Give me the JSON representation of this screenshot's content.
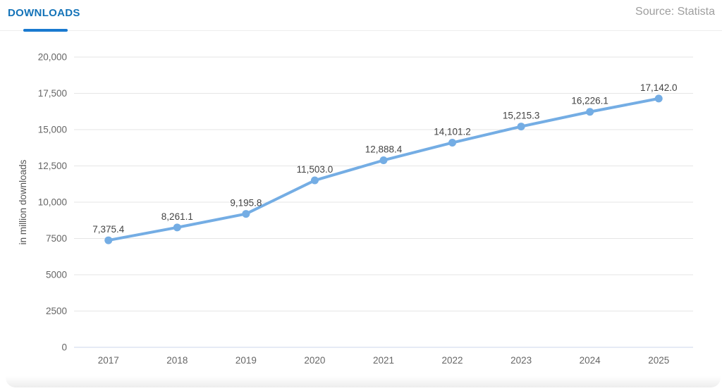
{
  "header": {
    "tab_label": "DOWNLOADS",
    "source": "Source: Statista"
  },
  "colors": {
    "title_blue": "#1473b8",
    "indicator_blue": "#1a7ad0",
    "line_blue": "#74ade4",
    "grid_gray": "#e6e6e6",
    "axis_line": "#ccd6eb",
    "tick_text": "#666666",
    "data_label_text": "#434343",
    "axis_title_text": "#555555",
    "source_text": "#9e9e9e"
  },
  "chart_data": {
    "type": "line",
    "title": "DOWNLOADS",
    "categories": [
      "2017",
      "2018",
      "2019",
      "2020",
      "2021",
      "2022",
      "2023",
      "2024",
      "2025"
    ],
    "values": [
      7375.4,
      8261.1,
      9195.8,
      11503.0,
      12888.4,
      14101.2,
      15215.3,
      16226.1,
      17142.0
    ],
    "point_labels": [
      "7,375.4",
      "8,261.1",
      "9,195.8",
      "11,503.0",
      "12,888.4",
      "14,101.2",
      "15,215.3",
      "16,226.1",
      "17,142.0"
    ],
    "xlabel": "",
    "ylabel": "in million downloads",
    "ylim": [
      0,
      20000
    ],
    "ytick_interval": 2500,
    "ytick_labels": [
      "0",
      "2500",
      "5000",
      "7500",
      "10,000",
      "12,500",
      "15,000",
      "17,500",
      "20,000"
    ],
    "grid": true,
    "legend": "none",
    "line_color": "#74ade4",
    "marker": "circle"
  }
}
